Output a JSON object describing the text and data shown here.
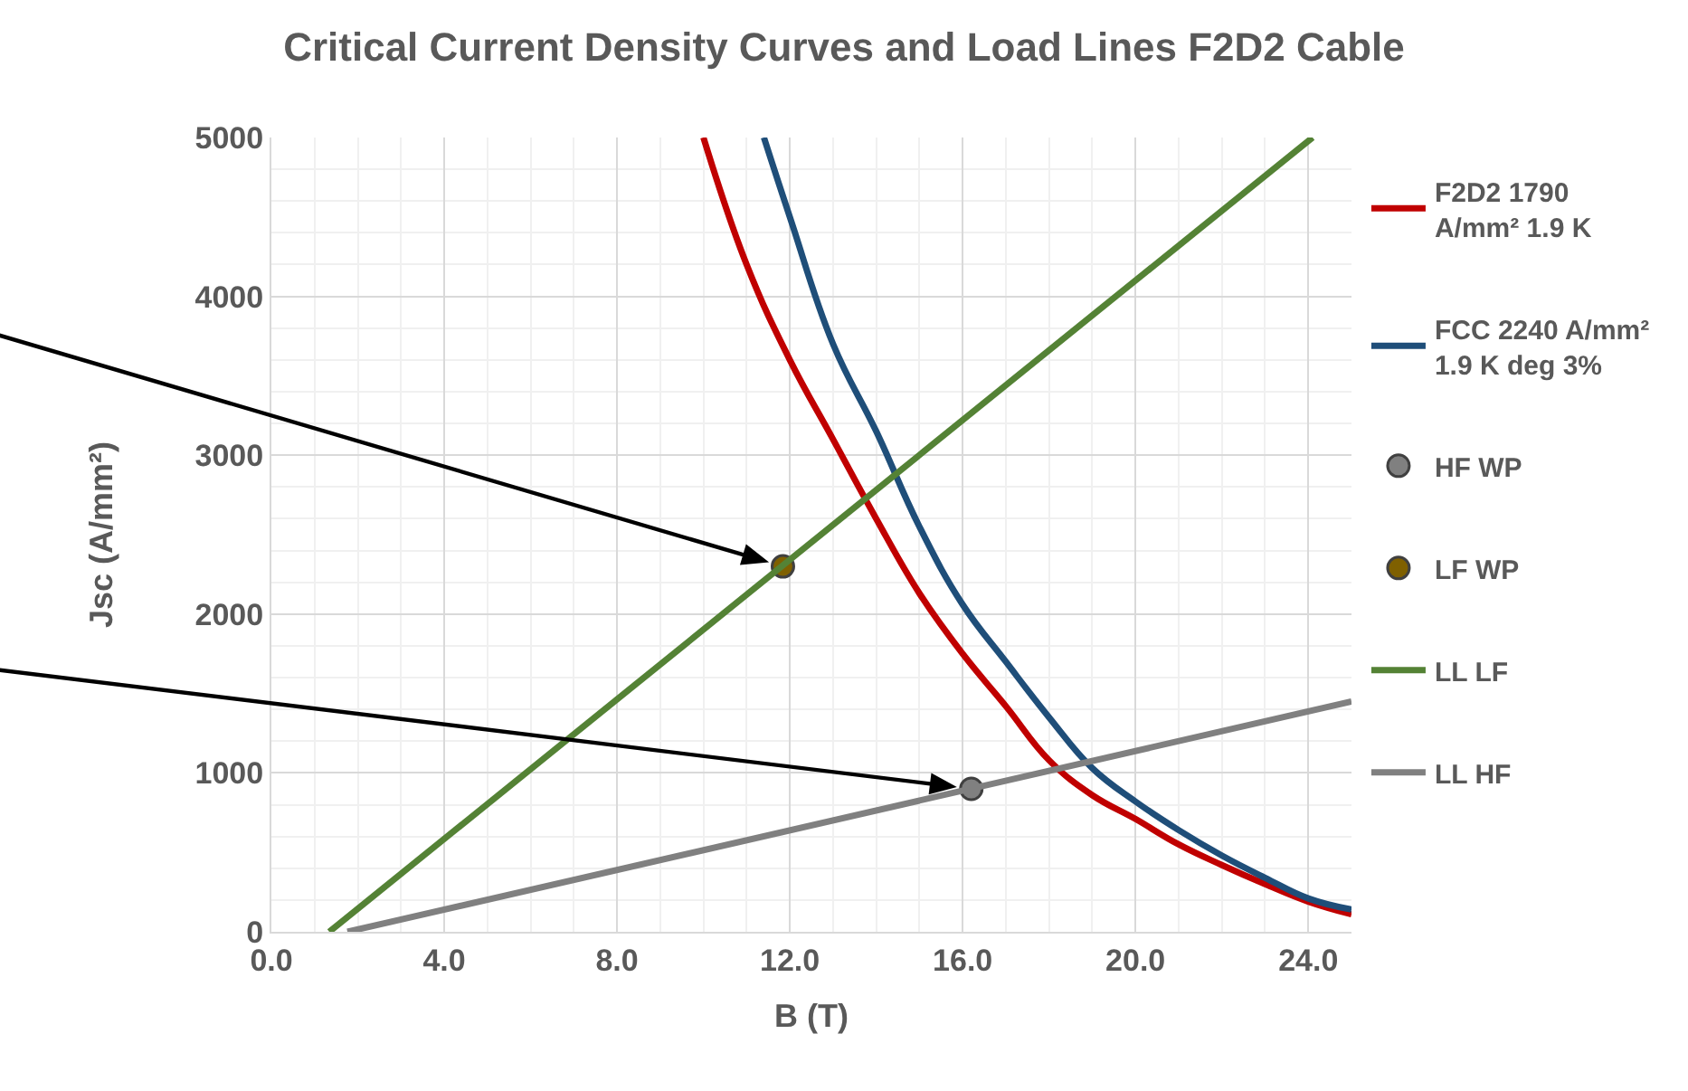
{
  "chart_data": {
    "type": "line",
    "title": "Critical Current Density Curves and Load Lines F2D2 Cable",
    "xlabel": "B (T)",
    "ylabel": "Jsc (A/mm²)",
    "xlim": [
      0,
      25
    ],
    "xticks": [
      {
        "value": 0,
        "label": "0.0"
      },
      {
        "value": 4,
        "label": "4.0"
      },
      {
        "value": 8,
        "label": "8.0"
      },
      {
        "value": 12,
        "label": "12.0"
      },
      {
        "value": 16,
        "label": "16.0"
      },
      {
        "value": 20,
        "label": "20.0"
      },
      {
        "value": 24,
        "label": "24.0"
      }
    ],
    "ylim": [
      0,
      5000
    ],
    "yticks": [
      0,
      1000,
      2000,
      3000,
      4000,
      5000
    ],
    "grid": true,
    "legend": "right",
    "series": [
      {
        "name": "F2D2 1790 A/mm² 1.9 K",
        "color": "#c00000",
        "marker": "none",
        "x": [
          10.0,
          11,
          12,
          13,
          14,
          15,
          16,
          17,
          18,
          19,
          20,
          21,
          22,
          23,
          24,
          25
        ],
        "values": [
          5000,
          4200,
          3600,
          3100,
          2600,
          2130,
          1750,
          1420,
          1080,
          860,
          710,
          550,
          420,
          300,
          190,
          110
        ]
      },
      {
        "name": "FCC 2240 A/mm² 1.9 K deg 3%",
        "color": "#1f4e79",
        "marker": "none",
        "x": [
          11.4,
          12,
          13,
          14,
          15,
          16,
          17,
          18,
          19,
          20,
          21,
          22,
          23,
          24,
          25
        ],
        "values": [
          5000,
          4500,
          3700,
          3150,
          2550,
          2060,
          1700,
          1350,
          1030,
          820,
          640,
          480,
          340,
          210,
          140
        ]
      },
      {
        "name": "HF WP",
        "color": "#808080",
        "type": "scatter",
        "marker": "circle",
        "x": [
          16.2
        ],
        "values": [
          900
        ]
      },
      {
        "name": "LF WP",
        "color": "#7f6000",
        "type": "scatter",
        "marker": "circle",
        "x": [
          11.84
        ],
        "values": [
          2300
        ]
      },
      {
        "name": "LL LF",
        "color": "#548235",
        "marker": "none",
        "x": [
          1.34,
          24.1
        ],
        "values": [
          0,
          5000
        ]
      },
      {
        "name": "LL HF",
        "color": "#808080",
        "marker": "none",
        "x": [
          1.76,
          25
        ],
        "values": [
          0,
          1450
        ]
      }
    ]
  }
}
